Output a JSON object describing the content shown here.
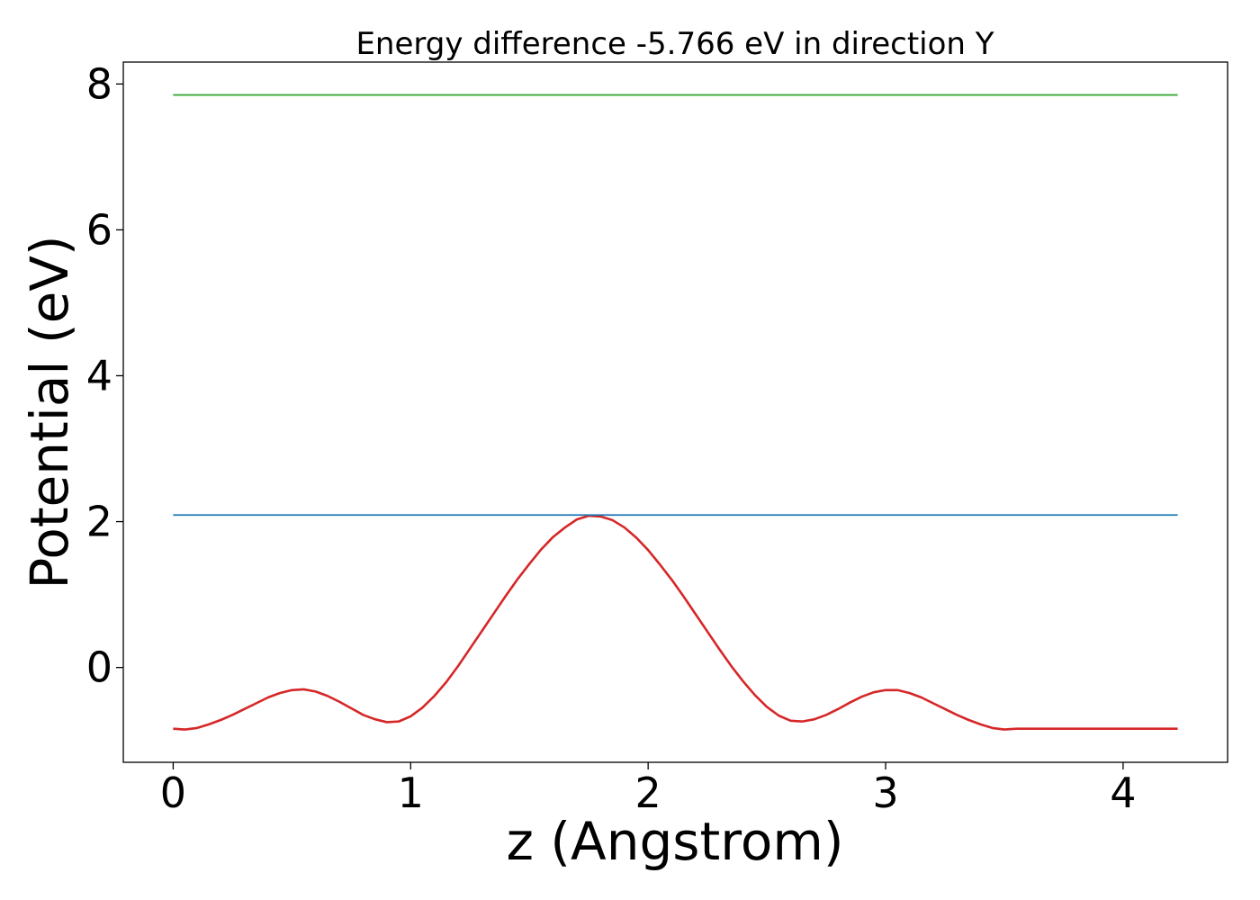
{
  "chart_data": {
    "type": "line",
    "title": "Energy difference -5.766 eV in direction Y",
    "xlabel": "z (Angstrom)",
    "ylabel": "Potential (eV)",
    "xlim": [
      -0.21,
      4.44
    ],
    "ylim": [
      -1.3,
      8.3
    ],
    "xticks": [
      0,
      1,
      2,
      3,
      4
    ],
    "yticks": [
      0,
      2,
      4,
      6,
      8
    ],
    "grid": false,
    "legend": "none",
    "series": [
      {
        "color": "#d62728",
        "x": [
          0.0,
          0.05,
          0.1,
          0.15,
          0.2,
          0.25,
          0.3,
          0.35,
          0.4,
          0.45,
          0.5,
          0.55,
          0.6,
          0.65,
          0.7,
          0.75,
          0.8,
          0.85,
          0.9,
          0.95,
          1.0,
          1.05,
          1.1,
          1.15,
          1.2,
          1.25,
          1.3,
          1.35,
          1.4,
          1.45,
          1.5,
          1.55,
          1.6,
          1.65,
          1.7,
          1.75,
          1.8,
          1.85,
          1.9,
          1.95,
          2.0,
          2.05,
          2.1,
          2.15,
          2.2,
          2.25,
          2.3,
          2.35,
          2.4,
          2.45,
          2.5,
          2.55,
          2.6,
          2.65,
          2.7,
          2.75,
          2.8,
          2.85,
          2.9,
          2.95,
          3.0,
          3.05,
          3.1,
          3.15,
          3.2,
          3.25,
          3.3,
          3.35,
          3.4,
          3.45,
          3.5,
          3.55,
          3.6,
          3.65,
          3.7,
          3.75,
          3.8,
          3.85,
          3.9,
          3.95,
          4.0,
          4.05,
          4.1,
          4.15,
          4.2,
          4.23
        ],
        "y": [
          -0.84,
          -0.85,
          -0.83,
          -0.78,
          -0.72,
          -0.65,
          -0.57,
          -0.49,
          -0.41,
          -0.35,
          -0.31,
          -0.3,
          -0.33,
          -0.39,
          -0.47,
          -0.56,
          -0.65,
          -0.71,
          -0.75,
          -0.74,
          -0.67,
          -0.55,
          -0.39,
          -0.2,
          0.02,
          0.26,
          0.5,
          0.74,
          0.98,
          1.21,
          1.42,
          1.62,
          1.79,
          1.92,
          2.03,
          2.08,
          2.07,
          2.02,
          1.92,
          1.78,
          1.61,
          1.41,
          1.2,
          0.97,
          0.73,
          0.49,
          0.25,
          0.02,
          -0.19,
          -0.38,
          -0.54,
          -0.66,
          -0.73,
          -0.74,
          -0.71,
          -0.65,
          -0.57,
          -0.48,
          -0.4,
          -0.34,
          -0.31,
          -0.31,
          -0.35,
          -0.41,
          -0.49,
          -0.57,
          -0.65,
          -0.72,
          -0.78,
          -0.83,
          -0.85,
          -0.84,
          -0.84,
          -0.84,
          -0.84,
          -0.84,
          -0.84,
          -0.84,
          -0.84,
          -0.84,
          -0.84,
          -0.84,
          -0.84,
          -0.84,
          -0.84,
          -0.84
        ]
      },
      {
        "color": "#1f77b4",
        "x": [
          0.0,
          4.23
        ],
        "y": [
          2.09,
          2.09
        ]
      },
      {
        "color": "#2ca02c",
        "x": [
          0.0,
          4.23
        ],
        "y": [
          7.85,
          7.85
        ]
      }
    ]
  }
}
